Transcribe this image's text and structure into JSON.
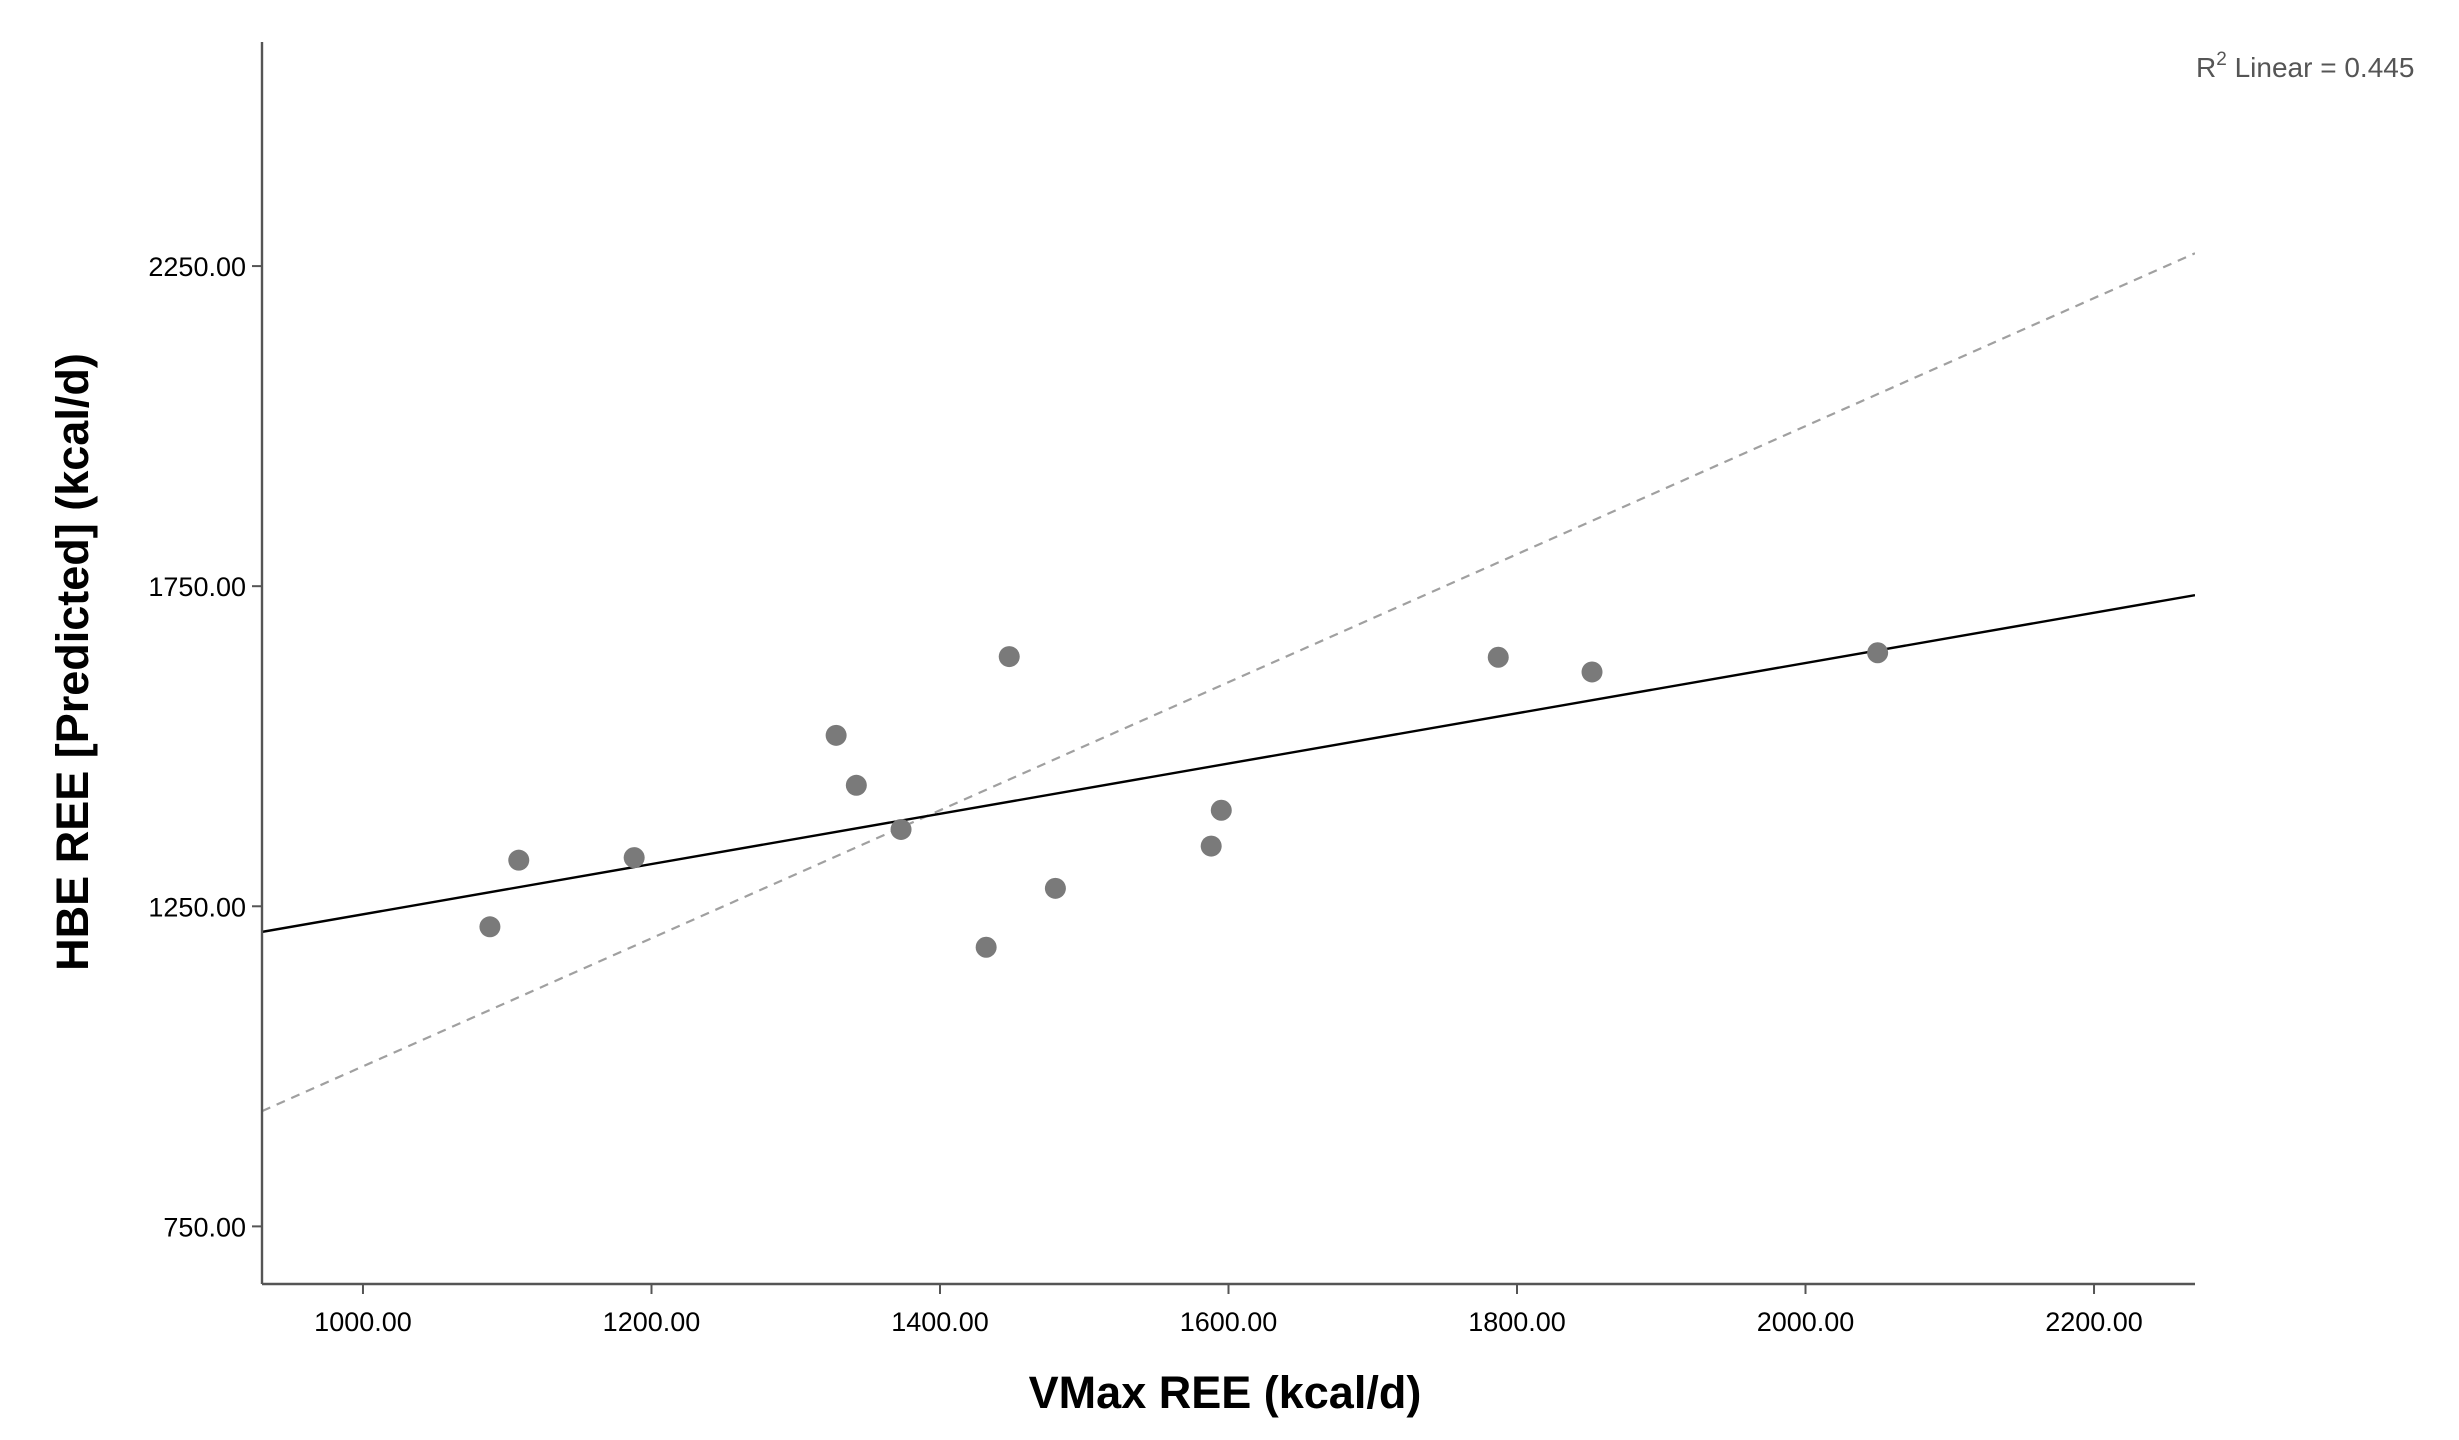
{
  "chart_data": {
    "type": "scatter",
    "title": "",
    "xlabel": "VMax REE (kcal/d)",
    "ylabel": "HBE REE [Predicted] (kcal/d)",
    "xlim": [
      930,
      2270
    ],
    "ylim": [
      660,
      2600
    ],
    "xticks": [
      "1000.00",
      "1200.00",
      "1400.00",
      "1600.00",
      "1800.00",
      "2000.00",
      "2200.00"
    ],
    "yticks": [
      "750.00",
      "1250.00",
      "1750.00",
      "2250.00"
    ],
    "points": [
      {
        "x": 1088,
        "y": 1218
      },
      {
        "x": 1108,
        "y": 1322
      },
      {
        "x": 1188,
        "y": 1326
      },
      {
        "x": 1328,
        "y": 1517
      },
      {
        "x": 1342,
        "y": 1439
      },
      {
        "x": 1373,
        "y": 1370
      },
      {
        "x": 1432,
        "y": 1186
      },
      {
        "x": 1448,
        "y": 1640
      },
      {
        "x": 1480,
        "y": 1278
      },
      {
        "x": 1588,
        "y": 1344
      },
      {
        "x": 1595,
        "y": 1400
      },
      {
        "x": 1787,
        "y": 1639
      },
      {
        "x": 1852,
        "y": 1616
      },
      {
        "x": 2050,
        "y": 1646
      }
    ],
    "fit_line": {
      "x": [
        930,
        2270
      ],
      "y": [
        1210,
        1736
      ]
    },
    "reference_line": {
      "x": [
        930,
        2270
      ],
      "y": [
        930,
        2270
      ]
    },
    "annotation": {
      "prefix": "R",
      "sup": "2",
      "text": " Linear = 0.445"
    },
    "grid": false,
    "colors": {
      "points": "#7a7a7a",
      "fit_line": "#000000",
      "reference_line": "#a0a0a0",
      "axes": "#555555"
    }
  }
}
